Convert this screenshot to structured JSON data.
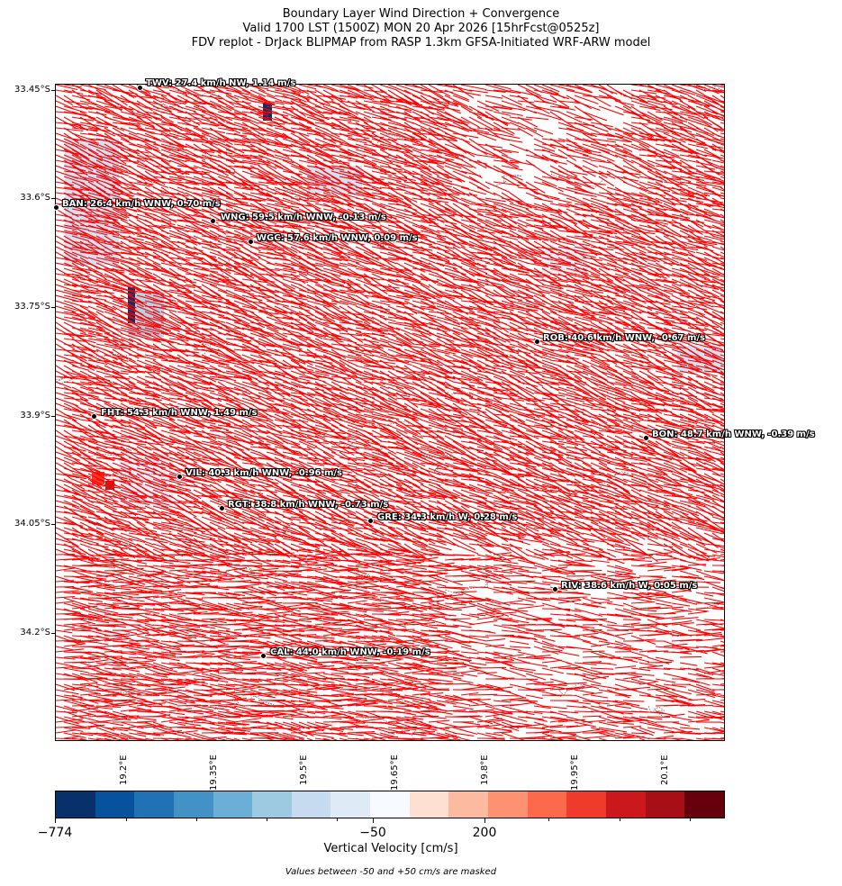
{
  "title": {
    "line1": "Boundary Layer Wind Direction + Convergence",
    "line2": "Valid 1700 LST (1500Z) MON 20 Apr 2026 [15hrFcst@0525z]",
    "line3": "FDV replot - DrJack BLIPMAP from RASP 1.3km GFSA-Initiated WRF-ARW model"
  },
  "axes": {
    "lat_labels": [
      "33.45°S",
      "33.6°S",
      "33.75°S",
      "33.9°S",
      "34.05°S",
      "34.2°S"
    ],
    "lon_labels": [
      "19.2°E",
      "19.35°E",
      "19.5°E",
      "19.65°E",
      "19.8°E",
      "19.95°E",
      "20.1°E"
    ]
  },
  "stations": [
    {
      "id": "TWV",
      "label": "TWV: 27.4 km/h NW, 1.14 m/s"
    },
    {
      "id": "BAN",
      "label": "BAN: 26.4 km/h WNW, 0.70 m/s"
    },
    {
      "id": "WNG",
      "label": "WNG: 59.5 km/h WNW, -0.13 m/s"
    },
    {
      "id": "WGC",
      "label": "WGC: 57.6 km/h WNW, 0.09 m/s"
    },
    {
      "id": "ROB",
      "label": "ROB: 40.6 km/h WNW, -0.67 m/s"
    },
    {
      "id": "FHT",
      "label": "FHT: 54.3 km/h WNW, 1.49 m/s"
    },
    {
      "id": "BON",
      "label": "BON: 48.7 km/h WNW, -0.39 m/s"
    },
    {
      "id": "VIL",
      "label": "VIL: 40.3 km/h WNW, -0.96 m/s"
    },
    {
      "id": "RGT",
      "label": "RGT: 38.8 km/h WNW, -0.73 m/s"
    },
    {
      "id": "GRE",
      "label": "GRE: 34.3 km/h W, 0.28 m/s"
    },
    {
      "id": "RIV",
      "label": "RIV: 38.6 km/h W, 0.05 m/s"
    },
    {
      "id": "CAL",
      "label": "CAL: 44.0 km/h WNW, -0.19 m/s"
    }
  ],
  "colorbar": {
    "label": "Vertical Velocity [cm/s]",
    "tick_labels": [
      "−774",
      "−50",
      "200"
    ],
    "colors": [
      "#08306b",
      "#08519c",
      "#2171b5",
      "#4292c6",
      "#6baed6",
      "#9ecae1",
      "#c6dbef",
      "#deebf7",
      "#f7fbff",
      "#fee0d2",
      "#fcbba1",
      "#fc9272",
      "#fb6a4a",
      "#ef3b2c",
      "#cb181d",
      "#a50f15",
      "#67000d"
    ]
  },
  "footnote": "Values between -50 and +50 cm/s are masked",
  "colors": {
    "wind_arrow": "#ff0000",
    "contour": "#555f66"
  }
}
